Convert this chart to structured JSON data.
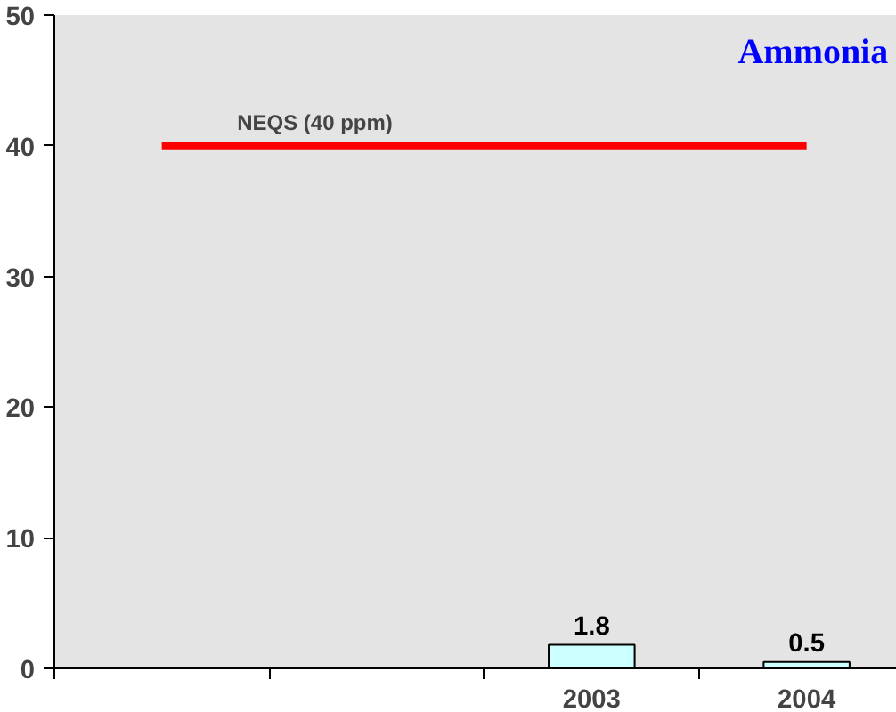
{
  "chart_data": {
    "type": "bar",
    "title": "Ammonia",
    "categories": [
      null,
      null,
      "2003",
      "2004"
    ],
    "values": [
      null,
      null,
      1.8,
      0.5
    ],
    "color": "#ccffff",
    "ylim": [
      0,
      50
    ],
    "yticks": [
      0,
      10,
      20,
      30,
      40,
      50
    ],
    "data_labels": true,
    "ref_lines": [
      {
        "axis": "y",
        "value": 40,
        "label": "NEQS (40 ppm)",
        "color": "#ff0000"
      }
    ]
  }
}
